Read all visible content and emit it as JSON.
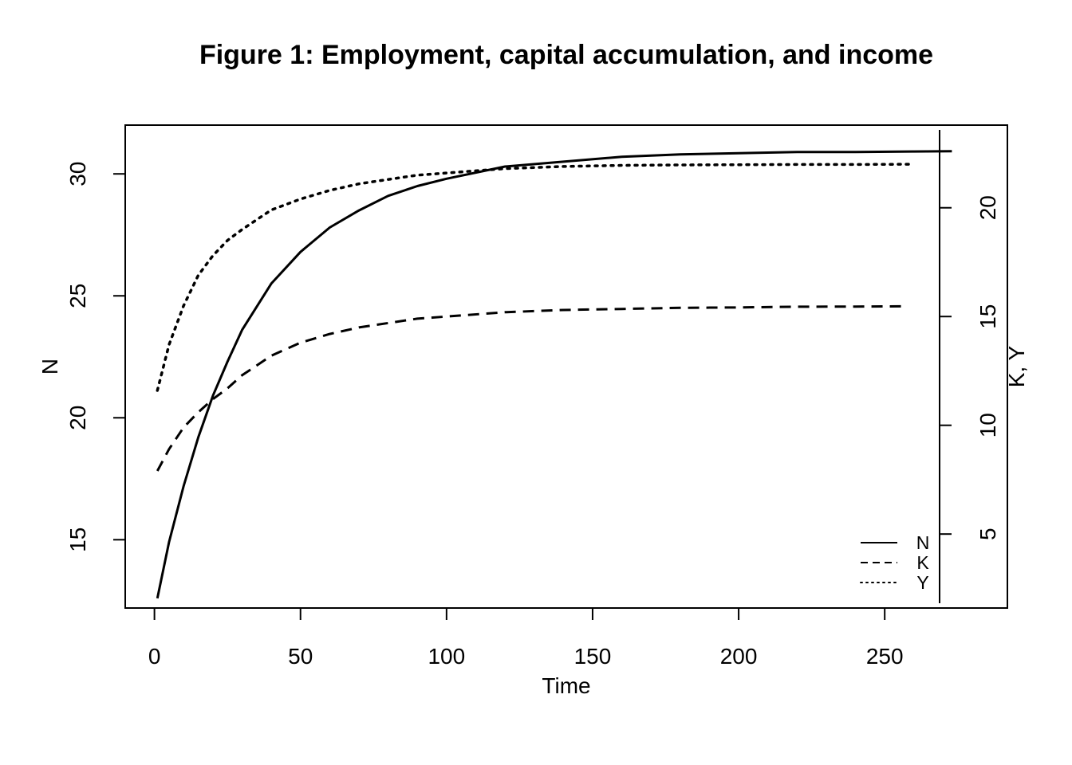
{
  "chart_data": {
    "type": "line",
    "title": "Figure 1: Employment, capital accumulation, and income",
    "xlabel": "Time",
    "ylabel_left": "N",
    "ylabel_right": "K, Y",
    "xlim": [
      -10,
      292
    ],
    "ylim_left": [
      12.2,
      32.0
    ],
    "ylim_right": [
      1.6,
      23.8
    ],
    "x_ticks": [
      0,
      50,
      100,
      150,
      200,
      250
    ],
    "y_left_ticks": [
      15,
      20,
      25,
      30
    ],
    "y_right_ticks": [
      5,
      10,
      15,
      20
    ],
    "grid": false,
    "legend_position": "bottom-right",
    "series": [
      {
        "name": "N",
        "axis": "left",
        "style": "solid",
        "x": [
          1,
          5,
          10,
          15,
          20,
          25,
          30,
          40,
          50,
          60,
          70,
          80,
          90,
          100,
          120,
          140,
          160,
          180,
          200,
          220,
          240,
          260,
          273
        ],
        "y": [
          12.6,
          14.9,
          17.2,
          19.2,
          20.9,
          22.3,
          23.6,
          25.5,
          26.8,
          27.8,
          28.5,
          29.1,
          29.5,
          29.8,
          30.3,
          30.5,
          30.7,
          30.8,
          30.85,
          30.9,
          30.9,
          30.92,
          30.93
        ]
      },
      {
        "name": "K",
        "axis": "right",
        "style": "dashed",
        "x": [
          1,
          5,
          10,
          15,
          20,
          25,
          30,
          40,
          50,
          60,
          70,
          80,
          90,
          100,
          120,
          140,
          160,
          180,
          200,
          220,
          240,
          256
        ],
        "y": [
          7.9,
          8.9,
          9.9,
          10.6,
          11.2,
          11.7,
          12.3,
          13.2,
          13.8,
          14.2,
          14.5,
          14.7,
          14.9,
          15.0,
          15.2,
          15.3,
          15.35,
          15.4,
          15.42,
          15.45,
          15.46,
          15.47
        ]
      },
      {
        "name": "Y",
        "axis": "right",
        "style": "dotted",
        "x": [
          1,
          5,
          10,
          15,
          20,
          25,
          30,
          40,
          50,
          60,
          70,
          80,
          90,
          100,
          120,
          140,
          160,
          180,
          200,
          220,
          240,
          259
        ],
        "y": [
          11.6,
          13.7,
          15.5,
          16.9,
          17.8,
          18.5,
          19.0,
          19.9,
          20.4,
          20.8,
          21.1,
          21.3,
          21.5,
          21.6,
          21.8,
          21.9,
          21.95,
          21.97,
          21.98,
          21.99,
          21.99,
          22.0
        ]
      }
    ]
  }
}
